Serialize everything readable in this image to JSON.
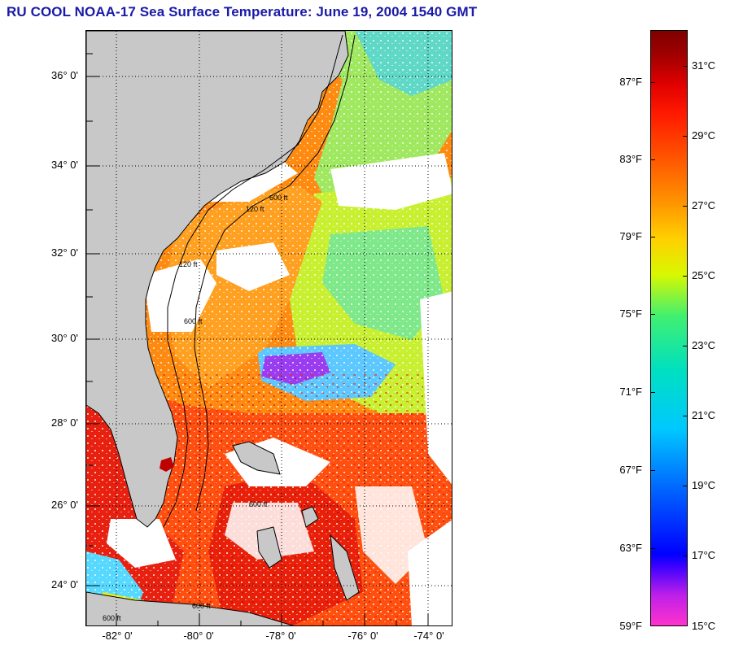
{
  "title": "RU COOL  NOAA-17  Sea Surface Temperature:  June 19, 2004 1540 GMT",
  "map": {
    "lat_labels": [
      "36° 0'",
      "34° 0'",
      "32° 0'",
      "30° 0'",
      "28° 0'",
      "26° 0'",
      "24° 0'"
    ],
    "lon_labels": [
      "-82° 0'",
      "-80° 0'",
      "-78° 0'",
      "-76° 0'",
      "-74° 0'"
    ],
    "isobath_labels": [
      "120 ft",
      "600 ft",
      "120 ft",
      "600 ft",
      "600 ft",
      "600 ft",
      "600 ft"
    ],
    "colors": {
      "land": "#c8c8c8",
      "cloud": "#ffffff",
      "grid": "#000000"
    }
  },
  "colorbar": {
    "fahrenheit_labels": [
      "87°F",
      "83°F",
      "79°F",
      "75°F",
      "71°F",
      "67°F",
      "63°F",
      "59°F"
    ],
    "celsius_labels": [
      "31°C",
      "29°C",
      "27°C",
      "25°C",
      "23°C",
      "21°C",
      "19°C",
      "17°C",
      "15°C"
    ],
    "range_c": [
      15,
      32
    ],
    "colors": [
      "#ff33cc",
      "#a020f0",
      "#0000ff",
      "#0088ff",
      "#00e5ff",
      "#00e0a0",
      "#7fff3f",
      "#f5f500",
      "#ffb000",
      "#ff6a00",
      "#ff1500",
      "#d00000",
      "#800000"
    ]
  }
}
